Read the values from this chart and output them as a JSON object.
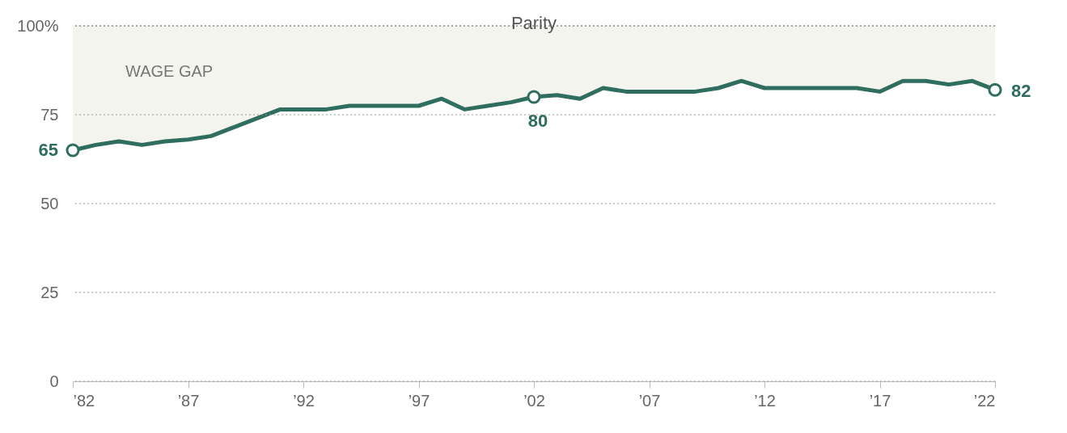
{
  "chart_data": {
    "type": "line",
    "x": [
      1982,
      1983,
      1984,
      1985,
      1986,
      1987,
      1988,
      1989,
      1990,
      1991,
      1992,
      1993,
      1994,
      1995,
      1996,
      1997,
      1998,
      1999,
      2000,
      2001,
      2002,
      2003,
      2004,
      2005,
      2006,
      2007,
      2008,
      2009,
      2010,
      2011,
      2012,
      2013,
      2014,
      2015,
      2016,
      2017,
      2018,
      2019,
      2020,
      2021,
      2022
    ],
    "series": [
      {
        "color": "#2f6e5e",
        "values": [
          65,
          66.5,
          67.5,
          66.5,
          67.5,
          68,
          69,
          71.5,
          74,
          76.5,
          76.5,
          76.5,
          77.5,
          77.5,
          77.5,
          77.5,
          79.5,
          76.5,
          77.5,
          78.5,
          80,
          80.5,
          79.5,
          82.5,
          81.5,
          81.5,
          81.5,
          81.5,
          82.5,
          84.5,
          82.5,
          82.5,
          82.5,
          82.5,
          82.5,
          81.5,
          84.5,
          84.5,
          83.5,
          84.5,
          82
        ],
        "lower": [
          65,
          66.5,
          67.5,
          66.5,
          67.5,
          68,
          69,
          71.5,
          74,
          76.5,
          76.5,
          76.5,
          77.5,
          77.5,
          77.5,
          77.5,
          79.5,
          76.5,
          77.5,
          78.5,
          80,
          80.5,
          79.5,
          82.5,
          81.5,
          81.5,
          81.5,
          81.5,
          82.5,
          84.5,
          82.5,
          82.5,
          82.5,
          82.5,
          82.5,
          81.5,
          84.5,
          84.5,
          83.5,
          84.5,
          82
        ],
        "upper": [
          100,
          100,
          100,
          100,
          100,
          100,
          100,
          100,
          100,
          100,
          100,
          100,
          100,
          100,
          100,
          100,
          100,
          100,
          100,
          100,
          100,
          100,
          100,
          100,
          100,
          100,
          100,
          100,
          100,
          100,
          100,
          100,
          100,
          100,
          100,
          100,
          100,
          100,
          100,
          100,
          100
        ],
        "value_labels": [
          "65",
          null,
          null,
          null,
          null,
          null,
          null,
          null,
          null,
          null,
          null,
          null,
          null,
          null,
          null,
          null,
          null,
          null,
          null,
          null,
          "80",
          null,
          null,
          null,
          null,
          null,
          null,
          null,
          null,
          null,
          null,
          null,
          null,
          null,
          null,
          null,
          null,
          null,
          null,
          null,
          "82"
        ]
      }
    ],
    "xlim": [
      1982,
      2022
    ],
    "xticks": [
      {
        "value": 1982,
        "label": "’82"
      },
      {
        "value": 1987,
        "label": "’87"
      },
      {
        "value": 1992,
        "label": "’92"
      },
      {
        "value": 1997,
        "label": "’97"
      },
      {
        "value": 2002,
        "label": "’02"
      },
      {
        "value": 2007,
        "label": "’07"
      },
      {
        "value": 2012,
        "label": "’12"
      },
      {
        "value": 2017,
        "label": "’17"
      },
      {
        "value": 2022,
        "label": "’22"
      }
    ],
    "ylim": [
      0,
      100
    ],
    "yticks": [
      0,
      25,
      50,
      75,
      {
        "value": 100,
        "label": "100%"
      }
    ],
    "grid": "y",
    "ref_lines": [
      {
        "axis": "y",
        "value": 100,
        "label": "Parity"
      }
    ],
    "annotations": [
      "WAGE GAP"
    ]
  }
}
